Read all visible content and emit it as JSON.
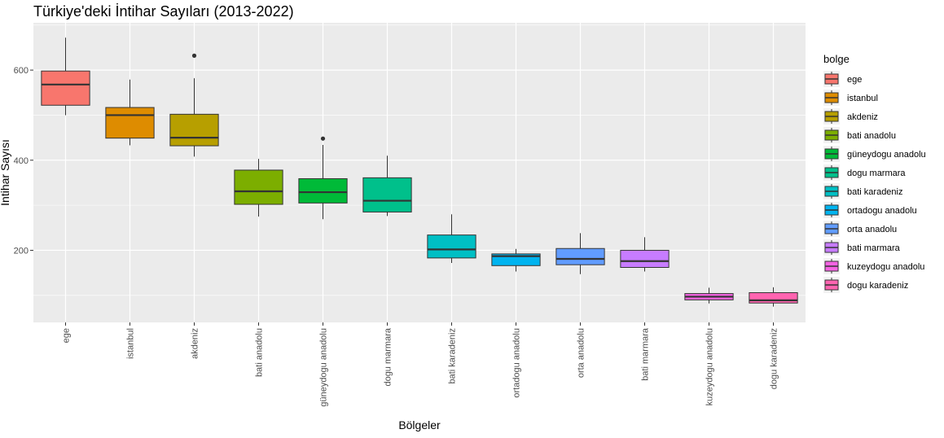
{
  "chart_data": {
    "type": "boxplot",
    "title": "Türkiye'deki İntihar Sayıları (2013-2022)",
    "xlabel": "Bölgeler",
    "ylabel": "İntihar Sayısı",
    "ylim": [
      40,
      705
    ],
    "yticks": [
      200,
      400,
      600
    ],
    "grid": true,
    "legend": {
      "title": "bolge",
      "placement": "right"
    },
    "categories": [
      "ege",
      "istanbul",
      "akdeniz",
      "bati anadolu",
      "güneydogu anadolu",
      "dogu marmara",
      "bati karadeniz",
      "ortadogu anadolu",
      "orta anadolu",
      "bati marmara",
      "kuzeydogu anadolu",
      "dogu karadeniz"
    ],
    "colors": [
      "#F8766D",
      "#DE8C00",
      "#B79F00",
      "#7CAE00",
      "#00BA38",
      "#00C08B",
      "#00BFC4",
      "#00B4F0",
      "#619CFF",
      "#C77CFF",
      "#F564E3",
      "#FF64B0"
    ],
    "series": [
      {
        "category": "ege",
        "min": 500,
        "q1": 522,
        "median": 568,
        "q3": 598,
        "max": 672,
        "outliers": []
      },
      {
        "category": "istanbul",
        "min": 433,
        "q1": 449,
        "median": 500,
        "q3": 517,
        "max": 579,
        "outliers": []
      },
      {
        "category": "akdeniz",
        "min": 408,
        "q1": 432,
        "median": 450,
        "q3": 502,
        "max": 582,
        "outliers": [
          632
        ]
      },
      {
        "category": "bati anadolu",
        "min": 275,
        "q1": 302,
        "median": 331,
        "q3": 378,
        "max": 403,
        "outliers": []
      },
      {
        "category": "güneydogu anadolu",
        "min": 269,
        "q1": 305,
        "median": 329,
        "q3": 359,
        "max": 434,
        "outliers": [
          448
        ]
      },
      {
        "category": "dogu marmara",
        "min": 276,
        "q1": 285,
        "median": 310,
        "q3": 361,
        "max": 410,
        "outliers": []
      },
      {
        "category": "bati karadeniz",
        "min": 172,
        "q1": 183,
        "median": 202,
        "q3": 234,
        "max": 280,
        "outliers": []
      },
      {
        "category": "ortadogu anadolu",
        "min": 153,
        "q1": 166,
        "median": 187,
        "q3": 192,
        "max": 203,
        "outliers": []
      },
      {
        "category": "orta anadolu",
        "min": 147,
        "q1": 168,
        "median": 181,
        "q3": 204,
        "max": 238,
        "outliers": []
      },
      {
        "category": "bati marmara",
        "min": 153,
        "q1": 162,
        "median": 176,
        "q3": 200,
        "max": 229,
        "outliers": []
      },
      {
        "category": "kuzeydogu anadolu",
        "min": 82,
        "q1": 90,
        "median": 97,
        "q3": 104,
        "max": 117,
        "outliers": []
      },
      {
        "category": "dogu karadeniz",
        "min": 75,
        "q1": 83,
        "median": 89,
        "q3": 106,
        "max": 118,
        "outliers": []
      }
    ]
  }
}
